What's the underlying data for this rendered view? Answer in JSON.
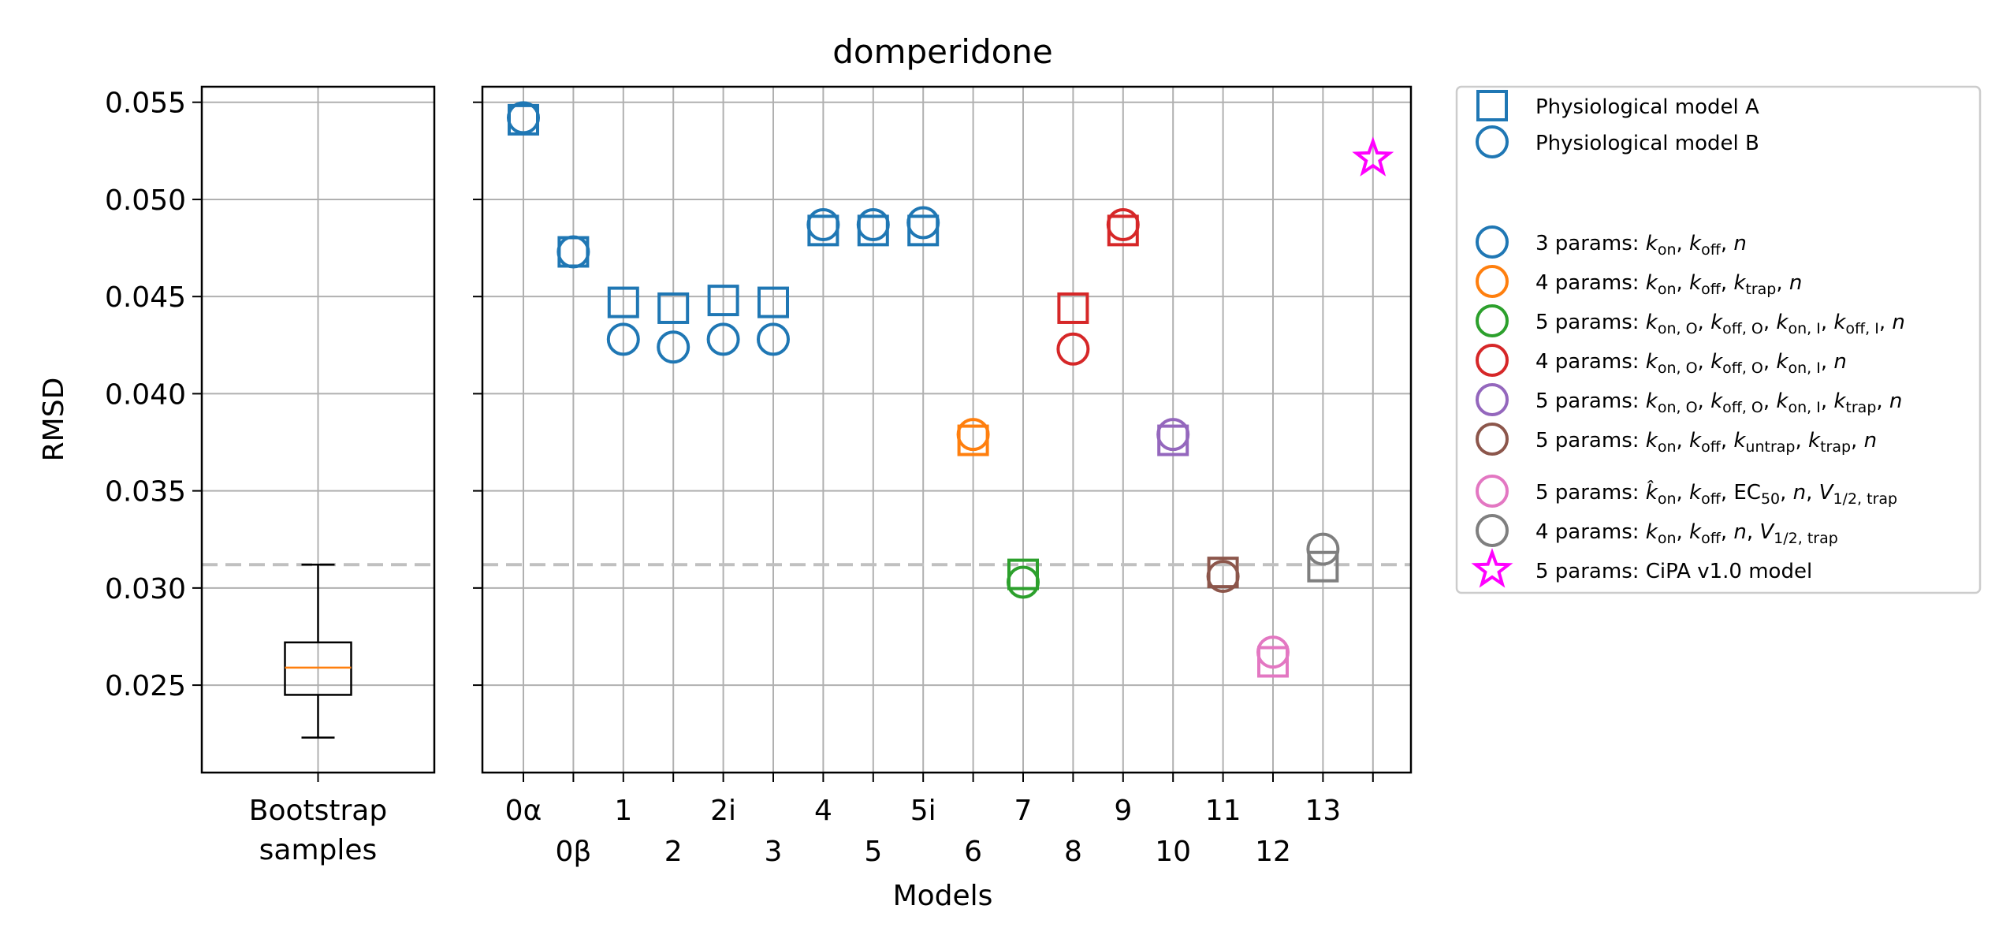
{
  "chart_data": [
    {
      "type": "box",
      "title": "",
      "xlabel": "",
      "ylabel": "RMSD",
      "ylim": [
        0.0205,
        0.0558
      ],
      "yticks": [
        0.025,
        0.03,
        0.035,
        0.04,
        0.045,
        0.05,
        0.055
      ],
      "ytick_labels": [
        "0.025",
        "0.030",
        "0.035",
        "0.040",
        "0.045",
        "0.050",
        "0.055"
      ],
      "category_lines": [
        "Bootstrap",
        "samples"
      ],
      "box": {
        "whisker_low": 0.0223,
        "q1": 0.0245,
        "median": 0.0259,
        "q3": 0.0272,
        "whisker_high": 0.0312
      },
      "reference_line": 0.0312,
      "grid": true
    },
    {
      "type": "scatter",
      "title": "domperidone",
      "xlabel": "Models",
      "ylabel": "",
      "ylim": [
        0.0205,
        0.0558
      ],
      "grid": true,
      "reference_line": 0.0312,
      "categories": [
        "0α",
        "0β",
        "1",
        "2",
        "2i",
        "3",
        "4",
        "5",
        "5i",
        "6",
        "7",
        "8",
        "9",
        "10",
        "11",
        "12",
        "13",
        "14"
      ],
      "tick_labels": [
        {
          "text": "0α",
          "row": 1
        },
        {
          "text": "0β",
          "row": 2
        },
        {
          "text": "1",
          "row": 1
        },
        {
          "text": "2",
          "row": 2
        },
        {
          "text": "2i",
          "row": 1
        },
        {
          "text": "3",
          "row": 2
        },
        {
          "text": "4",
          "row": 1
        },
        {
          "text": "5",
          "row": 2
        },
        {
          "text": "5i",
          "row": 1
        },
        {
          "text": "6",
          "row": 2
        },
        {
          "text": "7",
          "row": 1
        },
        {
          "text": "8",
          "row": 2
        },
        {
          "text": "9",
          "row": 1
        },
        {
          "text": "10",
          "row": 2
        },
        {
          "text": "11",
          "row": 1
        },
        {
          "text": "12",
          "row": 2
        },
        {
          "text": "13",
          "row": 1
        },
        {
          "text": "",
          "row": 2
        }
      ],
      "points": [
        {
          "x": "0α",
          "model_A": 0.0541,
          "model_B": 0.0542,
          "color": "#1f77b4"
        },
        {
          "x": "0β",
          "model_A": 0.0473,
          "model_B": 0.0473,
          "color": "#1f77b4"
        },
        {
          "x": "1",
          "model_A": 0.0447,
          "model_B": 0.0428,
          "color": "#1f77b4"
        },
        {
          "x": "2",
          "model_A": 0.0444,
          "model_B": 0.0424,
          "color": "#1f77b4"
        },
        {
          "x": "2i",
          "model_A": 0.0448,
          "model_B": 0.0428,
          "color": "#1f77b4"
        },
        {
          "x": "3",
          "model_A": 0.0447,
          "model_B": 0.0428,
          "color": "#1f77b4"
        },
        {
          "x": "4",
          "model_A": 0.0484,
          "model_B": 0.0487,
          "color": "#1f77b4"
        },
        {
          "x": "5",
          "model_A": 0.0484,
          "model_B": 0.0487,
          "color": "#1f77b4"
        },
        {
          "x": "5i",
          "model_A": 0.0484,
          "model_B": 0.0488,
          "color": "#1f77b4"
        },
        {
          "x": "6",
          "model_A": 0.0376,
          "model_B": 0.0379,
          "color": "#ff7f0e"
        },
        {
          "x": "7",
          "model_A": 0.0307,
          "model_B": 0.0303,
          "color": "#2ca02c"
        },
        {
          "x": "8",
          "model_A": 0.0444,
          "model_B": 0.0423,
          "color": "#d62728"
        },
        {
          "x": "9",
          "model_A": 0.0484,
          "model_B": 0.0487,
          "color": "#d62728"
        },
        {
          "x": "10",
          "model_A": 0.0376,
          "model_B": 0.0379,
          "color": "#9467bd"
        },
        {
          "x": "11",
          "model_A": 0.0308,
          "model_B": 0.0306,
          "color": "#8c564b"
        },
        {
          "x": "12",
          "model_A": 0.0262,
          "model_B": 0.0267,
          "color": "#e377c2"
        },
        {
          "x": "13",
          "model_A": 0.0311,
          "model_B": 0.032,
          "color": "#7f7f7f"
        }
      ],
      "cipa_point": {
        "x": "14",
        "y": 0.0521,
        "color": "#ff00ff"
      },
      "legend": {
        "placement": "outside-right",
        "entries": [
          {
            "marker": "square",
            "color": "#1f77b4",
            "parts": [
              {
                "t": "Physiological model A"
              }
            ]
          },
          {
            "marker": "circle",
            "color": "#1f77b4",
            "parts": [
              {
                "t": "Physiological model B"
              }
            ]
          },
          {
            "marker": "blank",
            "color": "",
            "parts": []
          },
          {
            "marker": "circle",
            "color": "#1f77b4",
            "parts": [
              {
                "t": "3 params: "
              },
              {
                "t": "k",
                "i": true
              },
              {
                "t": "on",
                "s": true
              },
              {
                "t": ", "
              },
              {
                "t": "k",
                "i": true
              },
              {
                "t": "off",
                "s": true
              },
              {
                "t": ", "
              },
              {
                "t": "n",
                "i": true
              }
            ]
          },
          {
            "marker": "circle",
            "color": "#ff7f0e",
            "parts": [
              {
                "t": "4 params: "
              },
              {
                "t": "k",
                "i": true
              },
              {
                "t": "on",
                "s": true
              },
              {
                "t": ", "
              },
              {
                "t": "k",
                "i": true
              },
              {
                "t": "off",
                "s": true
              },
              {
                "t": ", "
              },
              {
                "t": "k",
                "i": true
              },
              {
                "t": "trap",
                "s": true
              },
              {
                "t": ", "
              },
              {
                "t": "n",
                "i": true
              }
            ]
          },
          {
            "marker": "circle",
            "color": "#2ca02c",
            "parts": [
              {
                "t": "5 params: "
              },
              {
                "t": "k",
                "i": true
              },
              {
                "t": "on, O",
                "s": true
              },
              {
                "t": ", "
              },
              {
                "t": "k",
                "i": true
              },
              {
                "t": "off, O",
                "s": true
              },
              {
                "t": ", "
              },
              {
                "t": "k",
                "i": true
              },
              {
                "t": "on, I",
                "s": true
              },
              {
                "t": ", "
              },
              {
                "t": "k",
                "i": true
              },
              {
                "t": "off, I",
                "s": true
              },
              {
                "t": ", "
              },
              {
                "t": "n",
                "i": true
              }
            ]
          },
          {
            "marker": "circle",
            "color": "#d62728",
            "parts": [
              {
                "t": "4 params: "
              },
              {
                "t": "k",
                "i": true
              },
              {
                "t": "on, O",
                "s": true
              },
              {
                "t": ", "
              },
              {
                "t": "k",
                "i": true
              },
              {
                "t": "off, O",
                "s": true
              },
              {
                "t": ", "
              },
              {
                "t": "k",
                "i": true
              },
              {
                "t": "on, I",
                "s": true
              },
              {
                "t": ", "
              },
              {
                "t": "n",
                "i": true
              }
            ]
          },
          {
            "marker": "circle",
            "color": "#9467bd",
            "parts": [
              {
                "t": "5 params: "
              },
              {
                "t": "k",
                "i": true
              },
              {
                "t": "on, O",
                "s": true
              },
              {
                "t": ", "
              },
              {
                "t": "k",
                "i": true
              },
              {
                "t": "off, O",
                "s": true
              },
              {
                "t": ", "
              },
              {
                "t": "k",
                "i": true
              },
              {
                "t": "on, I",
                "s": true
              },
              {
                "t": ", "
              },
              {
                "t": "k",
                "i": true
              },
              {
                "t": "trap",
                "s": true
              },
              {
                "t": ", "
              },
              {
                "t": "n",
                "i": true
              }
            ]
          },
          {
            "marker": "circle",
            "color": "#8c564b",
            "parts": [
              {
                "t": "5 params: "
              },
              {
                "t": "k",
                "i": true
              },
              {
                "t": "on",
                "s": true
              },
              {
                "t": ", "
              },
              {
                "t": "k",
                "i": true
              },
              {
                "t": "off",
                "s": true
              },
              {
                "t": ", "
              },
              {
                "t": "k",
                "i": true
              },
              {
                "t": "untrap",
                "s": true
              },
              {
                "t": ", "
              },
              {
                "t": "k",
                "i": true
              },
              {
                "t": "trap",
                "s": true
              },
              {
                "t": ", "
              },
              {
                "t": "n",
                "i": true
              }
            ]
          },
          {
            "marker": "circle",
            "color": "#e377c2",
            "parts": [
              {
                "t": "5 params: "
              },
              {
                "t": "k̂",
                "i": true
              },
              {
                "t": "on",
                "s": true
              },
              {
                "t": ", "
              },
              {
                "t": "k",
                "i": true
              },
              {
                "t": "off",
                "s": true
              },
              {
                "t": ", EC"
              },
              {
                "t": "50",
                "s": true
              },
              {
                "t": ", "
              },
              {
                "t": "n",
                "i": true
              },
              {
                "t": ", "
              },
              {
                "t": "V",
                "i": true
              },
              {
                "t": "1/2, trap",
                "s": true
              }
            ]
          },
          {
            "marker": "circle",
            "color": "#7f7f7f",
            "parts": [
              {
                "t": "4 params: "
              },
              {
                "t": "k",
                "i": true
              },
              {
                "t": "on",
                "s": true
              },
              {
                "t": ", "
              },
              {
                "t": "k",
                "i": true
              },
              {
                "t": "off",
                "s": true
              },
              {
                "t": ", "
              },
              {
                "t": "n",
                "i": true
              },
              {
                "t": ", "
              },
              {
                "t": "V",
                "i": true
              },
              {
                "t": "1/2, trap",
                "s": true
              }
            ]
          },
          {
            "marker": "star",
            "color": "#ff00ff",
            "parts": [
              {
                "t": "5 params: CiPA v1.0 model"
              }
            ]
          }
        ]
      }
    }
  ]
}
